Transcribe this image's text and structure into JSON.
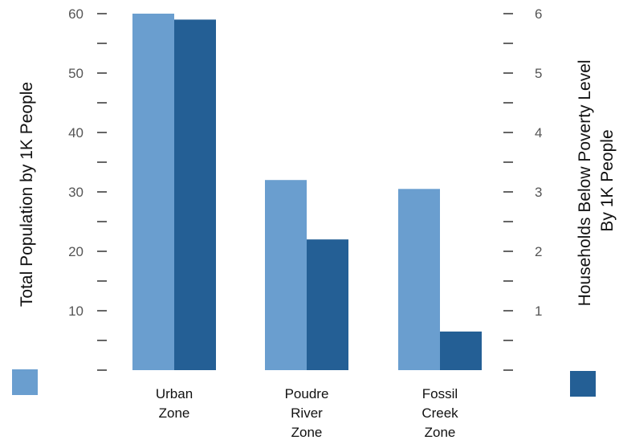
{
  "chart_data": {
    "type": "bar",
    "categories": [
      [
        "Urban",
        "Zone"
      ],
      [
        "Poudre",
        "River",
        "Zone"
      ],
      [
        "Fossil",
        "Creek",
        "Zone"
      ]
    ],
    "series": [
      {
        "name": "Total Population by 1K People",
        "axis": "left",
        "values": [
          60,
          32,
          30.5
        ],
        "color": "#6a9ecf"
      },
      {
        "name": "Households Below Poverty Level By 1K People",
        "axis": "right",
        "values": [
          5.9,
          2.2,
          0.65
        ],
        "color": "#245f95"
      }
    ],
    "left_axis": {
      "title": "Total Population by 1K People",
      "ylim": [
        0,
        60
      ],
      "major_ticks": [
        10,
        20,
        30,
        40,
        50,
        60
      ],
      "minor_step": 5
    },
    "right_axis": {
      "title_lines": [
        "Households Below Poverty Level",
        "By 1K People"
      ],
      "ylim": [
        0,
        6
      ],
      "major_ticks": [
        1,
        2,
        3,
        4,
        5,
        6
      ],
      "minor_step": 0.5
    },
    "grid": false,
    "legend": "color swatches under each axis title"
  }
}
